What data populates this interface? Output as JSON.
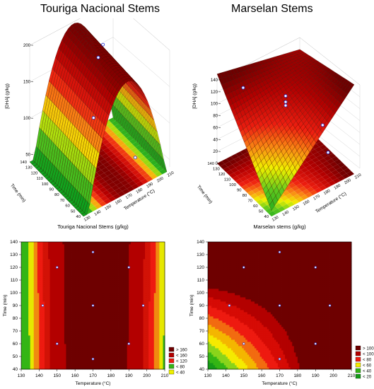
{
  "titles": {
    "left_top": "Touriga Nacional Stems",
    "right_top": "Marselan Stems"
  },
  "chart_data": [
    {
      "id": "tn-surface",
      "type": "surface3d",
      "title": "Touriga Nacional Stems",
      "zlabel": "[DHA] (g/kg)",
      "xlabel": "Time (min)",
      "ylabel": "Temperature (°C)",
      "time_ticks": [
        140,
        130,
        120,
        110,
        100,
        90,
        80,
        70,
        60,
        50,
        40
      ],
      "temp_ticks": [
        130,
        140,
        150,
        160,
        170,
        180,
        190,
        200,
        210
      ],
      "z_ticks": [
        50,
        100,
        150,
        200
      ],
      "zlim": [
        40,
        200
      ],
      "points": [
        {
          "time": 90,
          "temp": 170,
          "z": 190
        },
        {
          "time": 120,
          "temp": 190,
          "z": 170
        },
        {
          "time": 60,
          "temp": 150,
          "z": 145
        },
        {
          "time": 60,
          "temp": 190,
          "z": 60
        }
      ]
    },
    {
      "id": "ms-surface",
      "type": "surface3d",
      "title": "Marselan Stems",
      "zlabel": "[DHA] (g/kg)",
      "xlabel": "Time (min)",
      "ylabel": "Temperature (°C)",
      "time_ticks": [
        140,
        130,
        120,
        110,
        100,
        90,
        80,
        70,
        60,
        50,
        40
      ],
      "temp_ticks": [
        130,
        140,
        150,
        160,
        170,
        180,
        190,
        200,
        210
      ],
      "z_ticks": [
        0,
        20,
        40,
        60,
        80,
        100,
        120,
        140
      ],
      "zlim": [
        0,
        140
      ],
      "points": [
        {
          "time": 130,
          "temp": 150,
          "z": 118
        },
        {
          "time": 90,
          "temp": 170,
          "z": 122
        },
        {
          "time": 90,
          "temp": 170,
          "z": 112
        },
        {
          "time": 90,
          "temp": 170,
          "z": 106
        },
        {
          "time": 60,
          "temp": 190,
          "z": 82
        },
        {
          "time": 50,
          "temp": 190,
          "z": 45
        }
      ]
    },
    {
      "id": "tn-contour",
      "type": "heatmap",
      "title": "Touriga Nacional Stems (g/kg)",
      "xlabel": "Temperature (°C)",
      "ylabel": "Time (min)",
      "xlim": [
        130,
        210
      ],
      "ylim": [
        40,
        140
      ],
      "x_ticks": [
        130,
        140,
        150,
        160,
        170,
        180,
        190,
        200,
        210
      ],
      "y_ticks": [
        40,
        50,
        60,
        70,
        80,
        90,
        100,
        110,
        120,
        130,
        140
      ],
      "legend": [
        "> 160",
        "< 160",
        "< 120",
        "< 80",
        "< 40"
      ],
      "legend_colors": [
        "#6e0000",
        "#b30000",
        "#ee1a10",
        "#34b515",
        "#eef000"
      ],
      "points": [
        {
          "x": 170,
          "y": 132
        },
        {
          "x": 150,
          "y": 120
        },
        {
          "x": 190,
          "y": 120
        },
        {
          "x": 142,
          "y": 90
        },
        {
          "x": 170,
          "y": 90
        },
        {
          "x": 198,
          "y": 90
        },
        {
          "x": 150,
          "y": 60
        },
        {
          "x": 190,
          "y": 60
        },
        {
          "x": 170,
          "y": 48
        }
      ]
    },
    {
      "id": "ms-contour",
      "type": "heatmap",
      "title": "Marselan stems (g/kg)",
      "xlabel": "Temperature (°C)",
      "ylabel": "Time (min)",
      "xlim": [
        130,
        210
      ],
      "ylim": [
        40,
        140
      ],
      "x_ticks": [
        130,
        140,
        150,
        160,
        170,
        180,
        190,
        200,
        210
      ],
      "y_ticks": [
        40,
        50,
        60,
        70,
        80,
        90,
        100,
        110,
        120,
        130,
        140
      ],
      "legend": [
        "> 100",
        "< 100",
        "< 80",
        "< 60",
        "< 40",
        "< 20"
      ],
      "legend_colors": [
        "#6e0000",
        "#b30000",
        "#ee1a10",
        "#f5ea00",
        "#34b515",
        "#159a18"
      ],
      "points": [
        {
          "x": 170,
          "y": 132
        },
        {
          "x": 150,
          "y": 120
        },
        {
          "x": 190,
          "y": 120
        },
        {
          "x": 142,
          "y": 90
        },
        {
          "x": 170,
          "y": 90
        },
        {
          "x": 198,
          "y": 90
        },
        {
          "x": 150,
          "y": 60
        },
        {
          "x": 190,
          "y": 60
        },
        {
          "x": 170,
          "y": 48
        }
      ]
    }
  ]
}
